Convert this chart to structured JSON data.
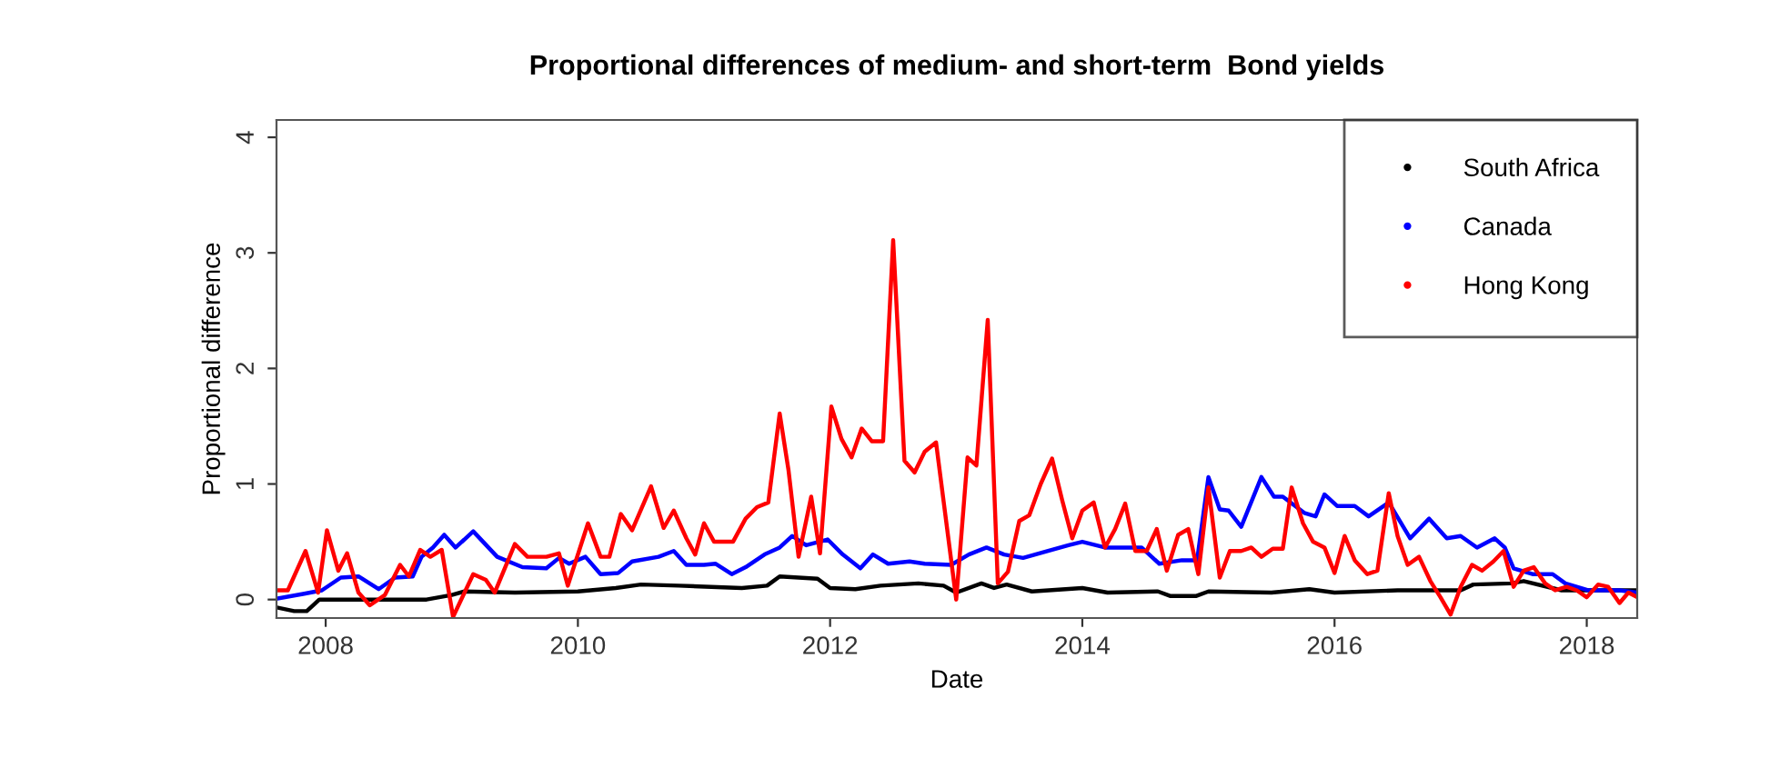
{
  "chart_data": {
    "type": "line",
    "title": "Proportional differences of medium- and short-term  Bond yields",
    "xlabel": "Date",
    "ylabel": "Proportional difference",
    "xlim": [
      2007.61,
      2018.4
    ],
    "xticks": [
      2008,
      2010,
      2012,
      2014,
      2016,
      2018
    ],
    "ylim": [
      -0.16,
      4.15
    ],
    "yticks": [
      0,
      1,
      2,
      3,
      4
    ],
    "legend": "top right",
    "grid": false,
    "line_style": "solid",
    "series": [
      {
        "name": "South Africa",
        "color": "#000000",
        "x": [
          2007.62,
          2007.75,
          2007.85,
          2007.95,
          2008.3,
          2008.8,
          2009.0,
          2009.1,
          2009.5,
          2010.0,
          2010.3,
          2010.5,
          2010.8,
          2011.3,
          2011.5,
          2011.6,
          2011.9,
          2012.0,
          2012.2,
          2012.4,
          2012.7,
          2012.9,
          2013.0,
          2013.2,
          2013.3,
          2013.4,
          2013.6,
          2014.0,
          2014.2,
          2014.6,
          2014.7,
          2014.9,
          2015.0,
          2015.5,
          2015.8,
          2016.0,
          2016.5,
          2017.0,
          2017.1,
          2017.4,
          2017.5,
          2017.8,
          2018.4
        ],
        "values": [
          -0.07,
          -0.1,
          -0.1,
          0.0,
          0.0,
          0.0,
          0.04,
          0.07,
          0.06,
          0.07,
          0.1,
          0.13,
          0.12,
          0.1,
          0.12,
          0.2,
          0.18,
          0.1,
          0.09,
          0.12,
          0.14,
          0.12,
          0.06,
          0.14,
          0.1,
          0.13,
          0.07,
          0.1,
          0.06,
          0.07,
          0.03,
          0.03,
          0.07,
          0.06,
          0.09,
          0.06,
          0.08,
          0.08,
          0.13,
          0.14,
          0.16,
          0.08,
          0.08
        ]
      },
      {
        "name": "Canada",
        "color": "#0000ff",
        "x": [
          2007.62,
          2007.83,
          2007.97,
          2008.12,
          2008.26,
          2008.42,
          2008.55,
          2008.69,
          2008.76,
          2008.85,
          2008.94,
          2009.03,
          2009.17,
          2009.36,
          2009.56,
          2009.75,
          2009.85,
          2009.93,
          2010.06,
          2010.18,
          2010.32,
          2010.43,
          2010.64,
          2010.76,
          2010.86,
          2011.0,
          2011.09,
          2011.22,
          2011.33,
          2011.48,
          2011.6,
          2011.7,
          2011.81,
          2011.98,
          2012.1,
          2012.24,
          2012.34,
          2012.46,
          2012.63,
          2012.75,
          2012.96,
          2013.1,
          2013.24,
          2013.38,
          2013.53,
          2013.69,
          2013.89,
          2014.0,
          2014.18,
          2014.32,
          2014.47,
          2014.61,
          2014.79,
          2014.91,
          2015.0,
          2015.09,
          2015.16,
          2015.26,
          2015.42,
          2015.52,
          2015.59,
          2015.76,
          2015.85,
          2015.92,
          2016.02,
          2016.16,
          2016.27,
          2016.43,
          2016.6,
          2016.75,
          2016.89,
          2017.0,
          2017.13,
          2017.27,
          2017.35,
          2017.42,
          2017.57,
          2017.73,
          2017.83,
          2018.01,
          2018.26,
          2018.4
        ],
        "values": [
          0.01,
          0.05,
          0.08,
          0.19,
          0.2,
          0.09,
          0.19,
          0.2,
          0.37,
          0.45,
          0.56,
          0.45,
          0.59,
          0.37,
          0.28,
          0.27,
          0.36,
          0.31,
          0.37,
          0.22,
          0.23,
          0.33,
          0.37,
          0.42,
          0.3,
          0.3,
          0.31,
          0.22,
          0.28,
          0.39,
          0.45,
          0.55,
          0.47,
          0.52,
          0.39,
          0.27,
          0.39,
          0.31,
          0.33,
          0.31,
          0.3,
          0.39,
          0.45,
          0.39,
          0.36,
          0.41,
          0.47,
          0.5,
          0.45,
          0.45,
          0.45,
          0.31,
          0.34,
          0.34,
          1.06,
          0.78,
          0.77,
          0.63,
          1.06,
          0.89,
          0.89,
          0.75,
          0.72,
          0.91,
          0.81,
          0.81,
          0.72,
          0.84,
          0.53,
          0.7,
          0.53,
          0.55,
          0.45,
          0.53,
          0.45,
          0.27,
          0.22,
          0.22,
          0.14,
          0.08,
          0.08,
          0.06
        ]
      },
      {
        "name": "Hong Kong",
        "color": "#ff0000",
        "x": [
          2007.62,
          2007.7,
          2007.84,
          2007.94,
          2008.01,
          2008.1,
          2008.17,
          2008.26,
          2008.35,
          2008.47,
          2008.59,
          2008.66,
          2008.75,
          2008.83,
          2008.92,
          2009.01,
          2009.17,
          2009.27,
          2009.34,
          2009.5,
          2009.6,
          2009.75,
          2009.85,
          2009.92,
          2010.08,
          2010.18,
          2010.25,
          2010.34,
          2010.43,
          2010.58,
          2010.68,
          2010.76,
          2010.86,
          2010.93,
          2011.0,
          2011.08,
          2011.23,
          2011.33,
          2011.42,
          2011.51,
          2011.6,
          2011.67,
          2011.75,
          2011.85,
          2011.92,
          2012.01,
          2012.09,
          2012.17,
          2012.25,
          2012.33,
          2012.42,
          2012.5,
          2012.59,
          2012.67,
          2012.75,
          2012.84,
          2013.0,
          2013.09,
          2013.16,
          2013.25,
          2013.33,
          2013.41,
          2013.5,
          2013.58,
          2013.67,
          2013.76,
          2013.84,
          2013.92,
          2014.0,
          2014.09,
          2014.18,
          2014.26,
          2014.34,
          2014.42,
          2014.51,
          2014.59,
          2014.67,
          2014.76,
          2014.84,
          2014.92,
          2015.0,
          2015.09,
          2015.17,
          2015.26,
          2015.34,
          2015.42,
          2015.51,
          2015.59,
          2015.66,
          2015.75,
          2015.83,
          2015.92,
          2016.0,
          2016.08,
          2016.16,
          2016.26,
          2016.34,
          2016.43,
          2016.5,
          2016.58,
          2016.67,
          2016.76,
          2016.84,
          2016.92,
          2017.0,
          2017.09,
          2017.17,
          2017.26,
          2017.34,
          2017.42,
          2017.5,
          2017.58,
          2017.67,
          2017.75,
          2017.84,
          2017.92,
          2018.0,
          2018.09,
          2018.17,
          2018.26,
          2018.33,
          2018.4
        ],
        "values": [
          0.08,
          0.08,
          0.42,
          0.06,
          0.6,
          0.25,
          0.4,
          0.06,
          -0.05,
          0.04,
          0.3,
          0.2,
          0.43,
          0.37,
          0.43,
          -0.15,
          0.22,
          0.17,
          0.06,
          0.48,
          0.37,
          0.37,
          0.4,
          0.12,
          0.66,
          0.37,
          0.37,
          0.74,
          0.6,
          0.98,
          0.62,
          0.77,
          0.53,
          0.39,
          0.66,
          0.5,
          0.5,
          0.7,
          0.8,
          0.84,
          1.61,
          1.12,
          0.37,
          0.89,
          0.4,
          1.67,
          1.39,
          1.23,
          1.48,
          1.37,
          1.37,
          3.11,
          1.2,
          1.1,
          1.28,
          1.36,
          0.0,
          1.23,
          1.16,
          2.42,
          0.14,
          0.24,
          0.68,
          0.73,
          1.0,
          1.22,
          0.86,
          0.53,
          0.77,
          0.84,
          0.45,
          0.61,
          0.83,
          0.42,
          0.42,
          0.61,
          0.25,
          0.56,
          0.61,
          0.22,
          0.97,
          0.19,
          0.42,
          0.42,
          0.45,
          0.37,
          0.44,
          0.44,
          0.97,
          0.66,
          0.5,
          0.45,
          0.23,
          0.55,
          0.34,
          0.22,
          0.25,
          0.92,
          0.55,
          0.3,
          0.37,
          0.16,
          0.02,
          -0.13,
          0.11,
          0.3,
          0.25,
          0.33,
          0.42,
          0.11,
          0.25,
          0.28,
          0.14,
          0.08,
          0.11,
          0.08,
          0.02,
          0.13,
          0.11,
          -0.03,
          0.06,
          0.02
        ]
      }
    ]
  }
}
